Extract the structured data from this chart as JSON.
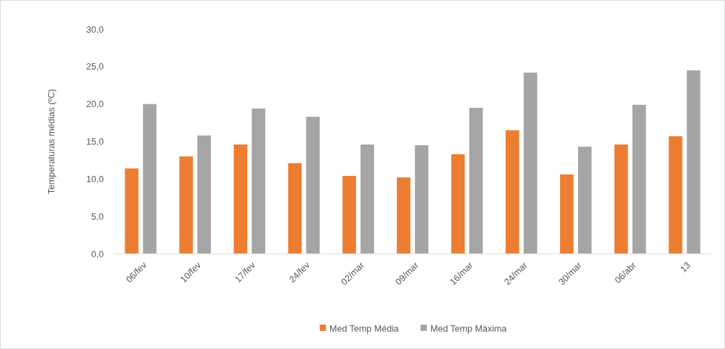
{
  "chart_data": {
    "type": "bar",
    "ylabel": "Temperaturas médias (ºC)",
    "categories": [
      "06/fev",
      "10/fev",
      "17/fev",
      "24/fev",
      "02/mar",
      "09/mar",
      "16/mar",
      "24/mar",
      "30/mar",
      "06/abr",
      "13"
    ],
    "series": [
      {
        "name": "Med Temp Média",
        "color": "#ed7d31",
        "values": [
          11.4,
          13.0,
          14.6,
          12.1,
          10.4,
          10.2,
          13.3,
          16.5,
          10.6,
          14.6,
          15.7
        ]
      },
      {
        "name": "Med Temp Máxima",
        "color": "#a5a5a5",
        "values": [
          20.0,
          15.8,
          19.4,
          18.3,
          14.6,
          14.5,
          19.5,
          24.2,
          14.3,
          19.9,
          24.5
        ]
      }
    ],
    "ylim": [
      0,
      30
    ],
    "yticks": [
      {
        "value": 0,
        "label": "0,0"
      },
      {
        "value": 5,
        "label": "5,0"
      },
      {
        "value": 10,
        "label": "10,0"
      },
      {
        "value": 15,
        "label": "15,0"
      },
      {
        "value": 20,
        "label": "20,0"
      },
      {
        "value": 25,
        "label": "25,0"
      },
      {
        "value": 30,
        "label": "30,0"
      }
    ],
    "legend": "bottom"
  }
}
